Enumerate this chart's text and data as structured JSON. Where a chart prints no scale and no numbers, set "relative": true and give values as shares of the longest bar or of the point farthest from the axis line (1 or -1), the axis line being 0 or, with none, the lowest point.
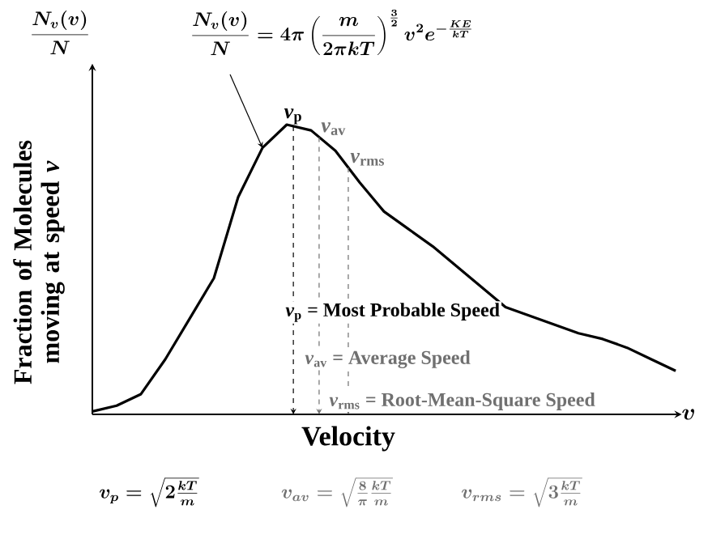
{
  "chart_data": {
    "type": "line",
    "relative": true,
    "categories": [
      null,
      null,
      null,
      null,
      null,
      null,
      null,
      null,
      null,
      null,
      null,
      null,
      null,
      null,
      null,
      null,
      null,
      null,
      null,
      null,
      null,
      null,
      null,
      null,
      null
    ],
    "series": [
      {
        "color": "#000000",
        "values": [
          0.01,
          0.03,
          0.07,
          0.19,
          0.33,
          0.47,
          0.75,
          0.92,
          1.0,
          0.98,
          0.91,
          0.8,
          0.7,
          0.64,
          0.58,
          0.51,
          0.44,
          0.37,
          0.34,
          0.31,
          0.28,
          0.26,
          0.23,
          0.19,
          0.15
        ]
      }
    ],
    "xlabel": "Velocity",
    "ylabel": "Fraction of Molecules moving at speed *v*",
    "annotations": [
      "\\frac{N_v(v)}{N}=4\\pi\\left(\\frac{m}{2\\pi kT}\\right)^{\\frac{3}{2}}v^2e^{-\\frac{KE}{kT}}",
      "\\frac{N_v(v)}{N}",
      "v",
      "*v*$_{p}$ = Most Probable Speed",
      "*v*$_{av}$ = Average Speed",
      "*v*$_{rms}$ = Root-Mean-Square Speed",
      "v_p=\\sqrt{2\\frac{kT}{m}}",
      "v_{av}=\\sqrt{\\frac{8}{\\pi}\\frac{kT}{m}}",
      "v_{rms}=\\sqrt{3\\frac{kT}{m}}",
      "*v*$_{p}$",
      "*v*$_{av}$",
      "*v*$_{rms}$"
    ]
  }
}
